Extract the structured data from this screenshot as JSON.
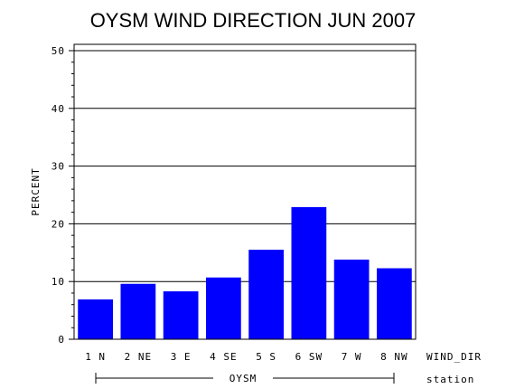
{
  "chart_data": {
    "type": "bar",
    "title": "OYSM WIND DIRECTION JUN 2007",
    "ylabel": "PERCENT",
    "xlabel": "WIND_DIR",
    "group_label": "OYSM",
    "group_axis_label": "station",
    "ylim": [
      0,
      50
    ],
    "yticks": [
      "0",
      "10",
      "20",
      "30",
      "40",
      "50"
    ],
    "grid": "horizontal",
    "bar_color": "#0000ff",
    "categories": [
      "1 N",
      "2 NE",
      "3 E",
      "4 SE",
      "5 S",
      "6 SW",
      "7 W",
      "8 NW"
    ],
    "values": [
      6.9,
      9.6,
      8.3,
      10.7,
      15.5,
      22.9,
      13.8,
      12.3
    ]
  }
}
